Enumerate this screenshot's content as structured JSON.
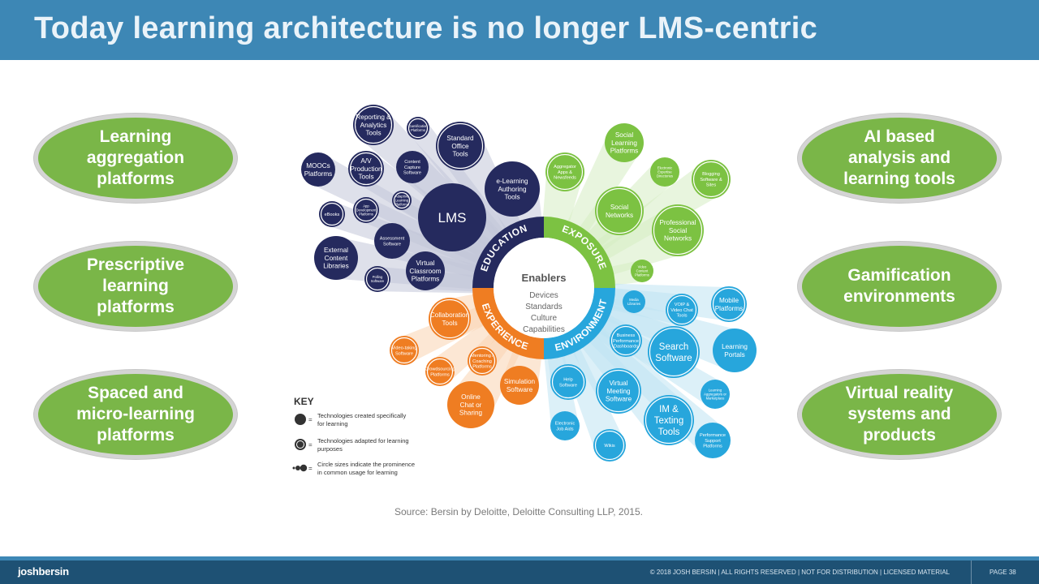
{
  "header": {
    "title": "Today learning architecture is no longer LMS-centric"
  },
  "left_ovals": [
    "Learning\naggregation\nplatforms",
    "Prescriptive\nlearning\nplatforms",
    "Spaced and\nmicro-learning\nplatforms"
  ],
  "right_ovals": [
    "AI based\nanalysis and\nlearning tools",
    "Gamification\nenvironments",
    "Virtual reality\nsystems and\nproducts"
  ],
  "center": {
    "title": "Enablers",
    "lines": [
      "Devices",
      "Standards",
      "Culture",
      "Capabilities"
    ]
  },
  "ring_labels": [
    "EDUCATION",
    "EXPOSURE",
    "EXPERIENCE",
    "ENVIRONMENT"
  ],
  "colors": {
    "education": "#252a5e",
    "exposure": "#7cc242",
    "experience": "#ef7d22",
    "environment": "#27a6dc",
    "header": "#3d87b5",
    "oval": "#7ab648"
  },
  "bubbles": {
    "education": [
      {
        "label": "Reporting &\nAnalytics\nTools",
        "size": "md"
      },
      {
        "label": "Gamification\nPlatforms",
        "size": "xs"
      },
      {
        "label": "Standard\nOffice\nTools",
        "size": "md"
      },
      {
        "label": "MOOCs\nPlatforms",
        "size": "md"
      },
      {
        "label": "A/V\nProduction\nTools",
        "size": "md"
      },
      {
        "label": "Content\nCapture\nSoftware",
        "size": "sm"
      },
      {
        "label": "e-Learning\nAuthoring\nTools",
        "size": "md"
      },
      {
        "label": "eBooks",
        "size": "sm"
      },
      {
        "label": "App\nDevelopment\nPlatforms",
        "size": "xs"
      },
      {
        "label": "Adaptive\nLearning\nPlatforms",
        "size": "xs"
      },
      {
        "label": "LMS",
        "size": "xl"
      },
      {
        "label": "External\nContent\nLibraries",
        "size": "md"
      },
      {
        "label": "Assessment\nSoftware",
        "size": "sm"
      },
      {
        "label": "Polling\nSoftware",
        "size": "xs"
      },
      {
        "label": "Virtual\nClassroom\nPlatforms",
        "size": "md"
      }
    ],
    "exposure": [
      {
        "label": "Social\nLearning\nPlatforms",
        "size": "md"
      },
      {
        "label": "Aggregator\nApps &\nNewsfeeds",
        "size": "sm"
      },
      {
        "label": "Electronic\nExpertise\nDirectories",
        "size": "xs"
      },
      {
        "label": "Blogging\nSoftware &\nSites",
        "size": "sm"
      },
      {
        "label": "Social\nNetworks",
        "size": "md"
      },
      {
        "label": "Professional\nSocial\nNetworks",
        "size": "md"
      },
      {
        "label": "Video\nContent\nPlatforms",
        "size": "xs"
      }
    ],
    "experience": [
      {
        "label": "Collaboration\nTools",
        "size": "md"
      },
      {
        "label": "Video-taking\nSoftware",
        "size": "sm"
      },
      {
        "label": "Crowdsourcing\nPlatforms",
        "size": "sm"
      },
      {
        "label": "Mentoring /\nCoaching\nPlatforms",
        "size": "sm"
      },
      {
        "label": "Simulation\nSoftware",
        "size": "md"
      },
      {
        "label": "Online\nChat or\nSharing",
        "size": "md"
      }
    ],
    "environment": [
      {
        "label": "Media\nLibraries",
        "size": "xs"
      },
      {
        "label": "VOIP &\nVideo Chat\nTools",
        "size": "sm"
      },
      {
        "label": "Mobile\nPlatforms",
        "size": "md"
      },
      {
        "label": "Business\nPerformance\nDashboards",
        "size": "sm"
      },
      {
        "label": "Search\nSoftware",
        "size": "lg"
      },
      {
        "label": "Learning\nPortals",
        "size": "md"
      },
      {
        "label": "Help\nSoftware",
        "size": "sm"
      },
      {
        "label": "Virtual\nMeeting\nSoftware",
        "size": "md"
      },
      {
        "label": "Learning\nAggregators or\nMarketplace",
        "size": "xs"
      },
      {
        "label": "IM &\nTexting\nTools",
        "size": "lg"
      },
      {
        "label": "Electronic\nJob Aids",
        "size": "sm"
      },
      {
        "label": "Wikis",
        "size": "sm"
      },
      {
        "label": "Performance\nSupport\nPlatforms",
        "size": "sm"
      }
    ]
  },
  "key": {
    "title": "KEY",
    "items": [
      "Technologies created specifically\nfor learning",
      "Technologies adapted for learning\npurposes",
      "Circle sizes indicate the prominence\nin common usage for learning"
    ]
  },
  "source": "Source: Bersin by Deloitte, Deloitte Consulting LLP, 2015.",
  "footer": {
    "logo": "joshbersin",
    "copyright": "© 2018 JOSH BERSIN | ALL RIGHTS RESERVED | NOT FOR DISTRIBUTION | LICENSED MATERIAL",
    "page": "PAGE 38"
  }
}
